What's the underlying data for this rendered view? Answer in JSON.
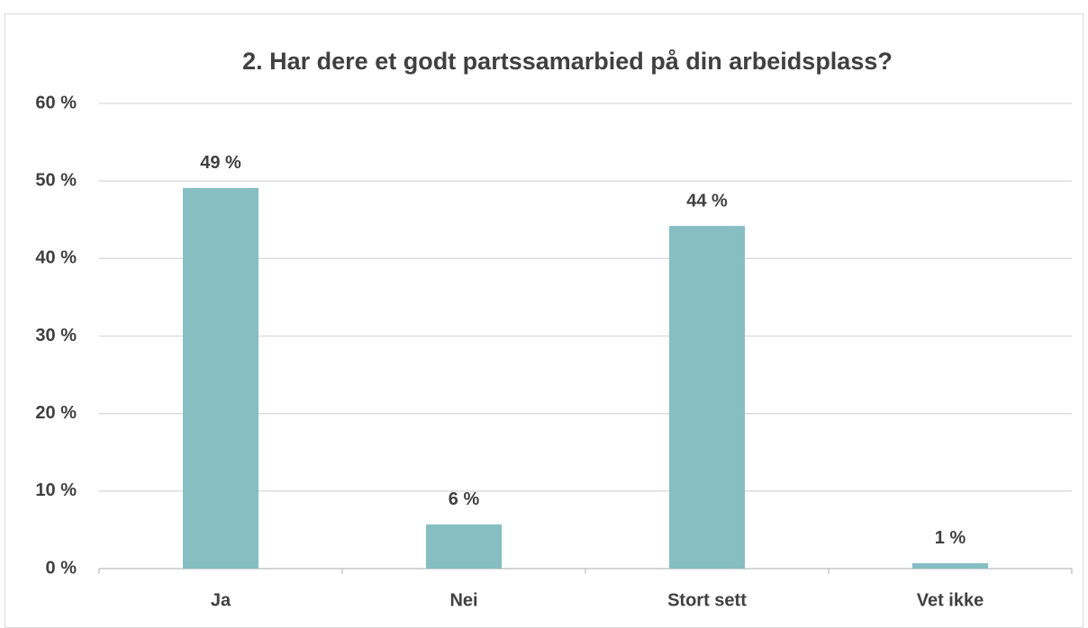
{
  "chart_data": {
    "type": "bar",
    "title": "2. Har dere et godt partssamarbied på din arbeidsplass?",
    "categories": [
      "Ja",
      "Nei",
      "Stort sett",
      "Vet ikke"
    ],
    "values": [
      49.1,
      5.7,
      44.2,
      0.7
    ],
    "value_labels": [
      "49 %",
      "6 %",
      "44 %",
      "1 %"
    ],
    "color": "#86bec3",
    "ylim": [
      0,
      60
    ],
    "yticks": [
      {
        "value": 0,
        "label": "0 %"
      },
      {
        "value": 10,
        "label": "10 %"
      },
      {
        "value": 20,
        "label": "20 %"
      },
      {
        "value": 30,
        "label": "30 %"
      },
      {
        "value": 40,
        "label": "40 %"
      },
      {
        "value": 50,
        "label": "50 %"
      },
      {
        "value": 60,
        "label": "60 %"
      }
    ],
    "grid": true
  }
}
